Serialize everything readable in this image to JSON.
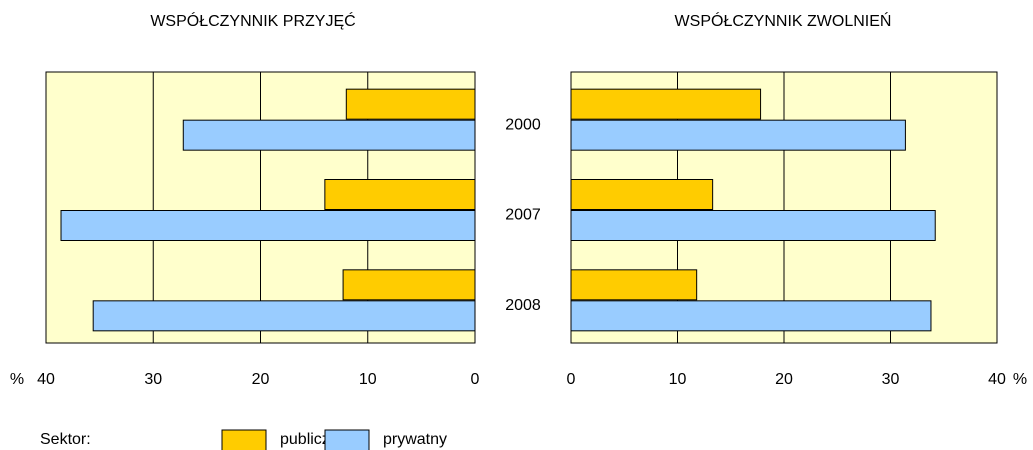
{
  "chart_data": [
    {
      "type": "bar",
      "orientation": "horizontal",
      "title": "WSPÓŁCZYNNIK PRZYJĘĆ",
      "x_label": "%",
      "categories": [
        "2000",
        "2007",
        "2008"
      ],
      "legend_title": "Sektor:",
      "series": [
        {
          "name": "publiczny",
          "color": "#ffcc00",
          "values": [
            12,
            14,
            12.3
          ]
        },
        {
          "name": "prywatny",
          "color": "#99ccff",
          "values": [
            27.2,
            38.6,
            35.6
          ]
        }
      ],
      "xlim": [
        0,
        40
      ],
      "xticks": [
        0,
        10,
        20,
        30,
        40
      ],
      "x_reversed": true,
      "grid": true,
      "background": "#ffffcc"
    },
    {
      "type": "bar",
      "orientation": "horizontal",
      "title": "WSPÓŁCZYNNIK ZWOLNIEŃ",
      "x_label": "%",
      "series": [
        {
          "color": "#ffcc00",
          "values": [
            17.8,
            13.3,
            11.8
          ]
        },
        {
          "color": "#99ccff",
          "values": [
            31.4,
            34.2,
            33.8
          ]
        }
      ],
      "xlim": [
        0,
        40
      ],
      "xticks": [
        0,
        10,
        20,
        30,
        40
      ],
      "x_reversed": false,
      "grid": true,
      "background": "#ffffcc"
    }
  ]
}
